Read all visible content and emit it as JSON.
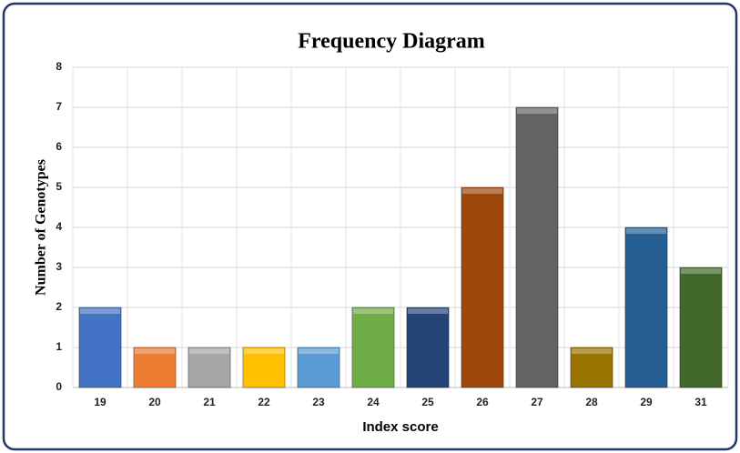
{
  "chart_data": {
    "type": "bar",
    "title": "Frequency Diagram",
    "x_label": "Index score",
    "y_label": "Number of Genotypes",
    "categories": [
      "19",
      "20",
      "21",
      "22",
      "23",
      "24",
      "25",
      "26",
      "27",
      "28",
      "29",
      "31"
    ],
    "values": [
      2,
      1,
      1,
      1,
      1,
      2,
      2,
      5,
      7,
      1,
      4,
      3
    ],
    "colors": [
      "#4472c4",
      "#ed7d31",
      "#a5a5a5",
      "#ffc000",
      "#5b9bd5",
      "#70ad47",
      "#264478",
      "#9e480e",
      "#636363",
      "#997300",
      "#255e91",
      "#43682b"
    ],
    "ylim": [
      0,
      8
    ],
    "yticks": [
      0,
      1,
      2,
      3,
      4,
      5,
      6,
      7,
      8
    ],
    "grid": true
  }
}
